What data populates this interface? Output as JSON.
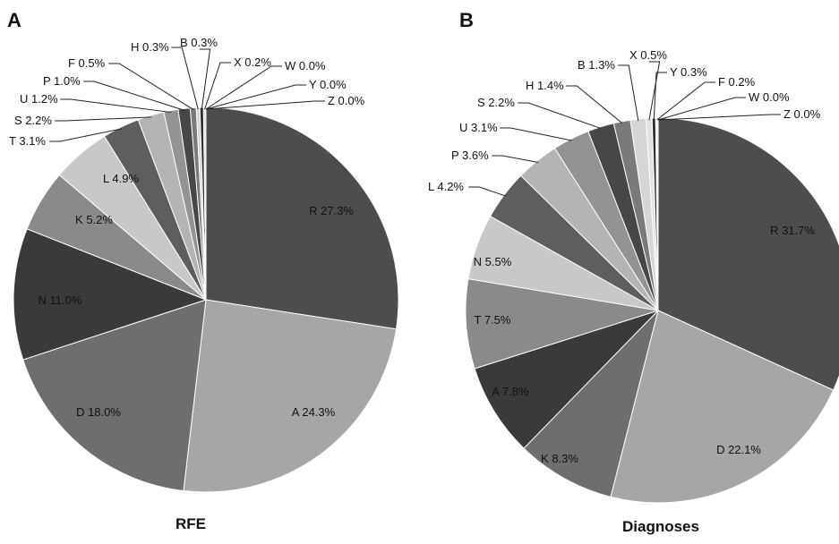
{
  "chart_data": [
    {
      "type": "pie",
      "panel": "A",
      "title": "RFE",
      "slices": [
        {
          "label": "R",
          "value": 27.3,
          "display": "27.3%",
          "color": "#4d4d4d"
        },
        {
          "label": "A",
          "value": 24.3,
          "display": "24.3%",
          "color": "#a6a6a6"
        },
        {
          "label": "D",
          "value": 18.0,
          "display": "18.0%",
          "color": "#6e6e6e"
        },
        {
          "label": "N",
          "value": 11.0,
          "display": "11.0%",
          "color": "#3a3a3a"
        },
        {
          "label": "K",
          "value": 5.2,
          "display": "5.2%",
          "color": "#8a8a8a"
        },
        {
          "label": "L",
          "value": 4.9,
          "display": "4.9%",
          "color": "#c8c8c8"
        },
        {
          "label": "T",
          "value": 3.1,
          "display": "3.1%",
          "color": "#5e5e5e"
        },
        {
          "label": "S",
          "value": 2.2,
          "display": "2.2%",
          "color": "#b4b4b4"
        },
        {
          "label": "U",
          "value": 1.2,
          "display": "1.2%",
          "color": "#939393"
        },
        {
          "label": "P",
          "value": 1.0,
          "display": "1.0%",
          "color": "#474747"
        },
        {
          "label": "F",
          "value": 0.5,
          "display": "0.5%",
          "color": "#7a7a7a"
        },
        {
          "label": "H",
          "value": 0.3,
          "display": "0.3%",
          "color": "#d6d6d6"
        },
        {
          "label": "B",
          "value": 0.3,
          "display": "0.3%",
          "color": "#2e2e2e"
        },
        {
          "label": "X",
          "value": 0.2,
          "display": "0.2%",
          "color": "#e2e2e2"
        },
        {
          "label": "W",
          "value": 0.0,
          "display": "0.0%",
          "color": "#999999"
        },
        {
          "label": "Y",
          "value": 0.0,
          "display": "0.0%",
          "color": "#bbbbbb"
        },
        {
          "label": "Z",
          "value": 0.0,
          "display": "0.0%",
          "color": "#777777"
        }
      ]
    },
    {
      "type": "pie",
      "panel": "B",
      "title": "Diagnoses",
      "slices": [
        {
          "label": "R",
          "value": 31.7,
          "display": "31.7%",
          "color": "#4d4d4d"
        },
        {
          "label": "D",
          "value": 22.1,
          "display": "22.1%",
          "color": "#a6a6a6"
        },
        {
          "label": "K",
          "value": 8.3,
          "display": "8.3%",
          "color": "#6e6e6e"
        },
        {
          "label": "A",
          "value": 7.8,
          "display": "7.8%",
          "color": "#3a3a3a"
        },
        {
          "label": "T",
          "value": 7.5,
          "display": "7.5%",
          "color": "#8a8a8a"
        },
        {
          "label": "N",
          "value": 5.5,
          "display": "5.5%",
          "color": "#c8c8c8"
        },
        {
          "label": "L",
          "value": 4.2,
          "display": "4.2%",
          "color": "#5e5e5e"
        },
        {
          "label": "P",
          "value": 3.6,
          "display": "3.6%",
          "color": "#b4b4b4"
        },
        {
          "label": "U",
          "value": 3.1,
          "display": "3.1%",
          "color": "#939393"
        },
        {
          "label": "S",
          "value": 2.2,
          "display": "2.2%",
          "color": "#474747"
        },
        {
          "label": "H",
          "value": 1.4,
          "display": "1.4%",
          "color": "#7a7a7a"
        },
        {
          "label": "B",
          "value": 1.3,
          "display": "1.3%",
          "color": "#d6d6d6"
        },
        {
          "label": "X",
          "value": 0.5,
          "display": "0.5%",
          "color": "#e2e2e2"
        },
        {
          "label": "Y",
          "value": 0.3,
          "display": "0.3%",
          "color": "#2e2e2e"
        },
        {
          "label": "F",
          "value": 0.2,
          "display": "0.2%",
          "color": "#f0f0f0"
        },
        {
          "label": "W",
          "value": 0.0,
          "display": "0.0%",
          "color": "#999999"
        },
        {
          "label": "Z",
          "value": 0.0,
          "display": "0.0%",
          "color": "#777777"
        }
      ]
    }
  ]
}
